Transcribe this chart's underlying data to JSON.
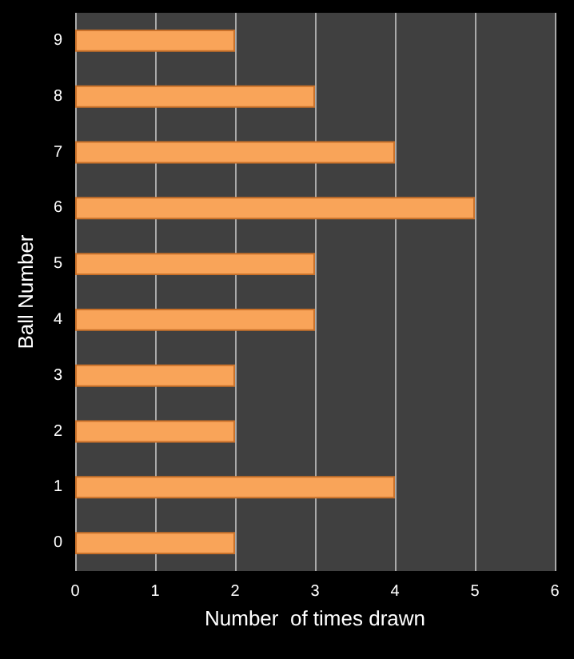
{
  "chart_data": {
    "type": "bar",
    "orientation": "horizontal",
    "xlabel": "Number  of times drawn",
    "ylabel": "Ball Number",
    "categories": [
      "9",
      "8",
      "7",
      "6",
      "5",
      "4",
      "3",
      "2",
      "1",
      "0"
    ],
    "values": [
      2,
      3,
      4,
      5,
      3,
      3,
      2,
      2,
      4,
      2
    ],
    "color": "#f9a459",
    "xlim": [
      0,
      6
    ],
    "xticks": [
      0,
      1,
      2,
      3,
      4,
      5,
      6
    ],
    "grid": "x"
  }
}
